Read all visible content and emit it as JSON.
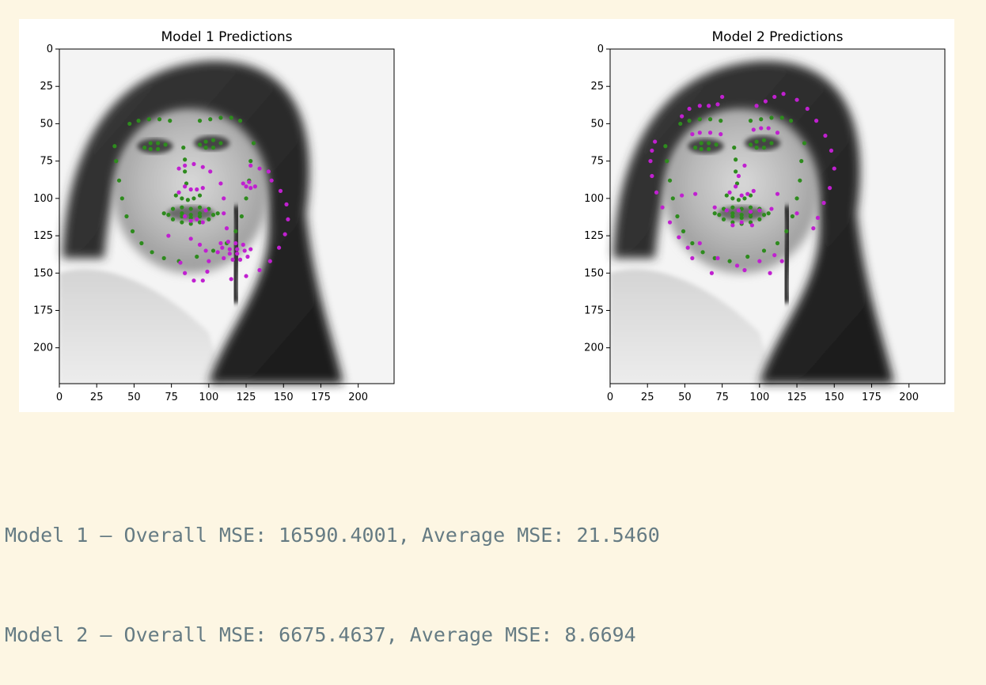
{
  "colors": {
    "page_background": "#fdf6e3",
    "output_text": "#657b83",
    "true_points": "#2e8b1e",
    "pred_points": "#c020d0"
  },
  "output_lines": [
    "Model 1 — Overall MSE: 16590.4001, Average MSE: 21.5460",
    "Model 2 — Overall MSE: 6675.4637, Average MSE: 8.6694"
  ],
  "chart_data": [
    {
      "type": "scatter",
      "title": "Model 1 Predictions",
      "background": "grayscale face image",
      "xlim": [
        0,
        224
      ],
      "ylim": [
        224,
        0
      ],
      "xticks": [
        0,
        25,
        50,
        75,
        100,
        125,
        150,
        175,
        200
      ],
      "yticks": [
        0,
        25,
        50,
        75,
        100,
        125,
        150,
        175,
        200
      ],
      "grid": false,
      "series": [
        {
          "color": "#2e8b1e",
          "points": [
            [
              37,
              65
            ],
            [
              38,
              75
            ],
            [
              40,
              88
            ],
            [
              42,
              100
            ],
            [
              45,
              112
            ],
            [
              49,
              122
            ],
            [
              55,
              130
            ],
            [
              62,
              136
            ],
            [
              70,
              140
            ],
            [
              80,
              142
            ],
            [
              92,
              139
            ],
            [
              103,
              135
            ],
            [
              112,
              130
            ],
            [
              118,
              122
            ],
            [
              122,
              112
            ],
            [
              125,
              100
            ],
            [
              127,
              88
            ],
            [
              128,
              75
            ],
            [
              130,
              63
            ],
            [
              47,
              50
            ],
            [
              53,
              48
            ],
            [
              60,
              47
            ],
            [
              67,
              47
            ],
            [
              74,
              48
            ],
            [
              94,
              48
            ],
            [
              101,
              47
            ],
            [
              108,
              46
            ],
            [
              115,
              46
            ],
            [
              121,
              48
            ],
            [
              83,
              66
            ],
            [
              84,
              74
            ],
            [
              84,
              82
            ],
            [
              85,
              90
            ],
            [
              78,
              98
            ],
            [
              82,
              100
            ],
            [
              86,
              101
            ],
            [
              90,
              100
            ],
            [
              94,
              98
            ],
            [
              57,
              66
            ],
            [
              61,
              63
            ],
            [
              66,
              63
            ],
            [
              71,
              64
            ],
            [
              66,
              67
            ],
            [
              61,
              67
            ],
            [
              94,
              64
            ],
            [
              98,
              62
            ],
            [
              103,
              61
            ],
            [
              108,
              63
            ],
            [
              103,
              66
            ],
            [
              98,
              66
            ],
            [
              70,
              110
            ],
            [
              76,
              107
            ],
            [
              82,
              106
            ],
            [
              88,
              107
            ],
            [
              94,
              106
            ],
            [
              100,
              107
            ],
            [
              106,
              110
            ],
            [
              100,
              114
            ],
            [
              94,
              116
            ],
            [
              88,
              117
            ],
            [
              82,
              116
            ],
            [
              76,
              114
            ],
            [
              73,
              111
            ],
            [
              82,
              110
            ],
            [
              88,
              111
            ],
            [
              94,
              110
            ],
            [
              103,
              111
            ],
            [
              94,
              112
            ],
            [
              88,
              113
            ],
            [
              82,
              112
            ]
          ]
        },
        {
          "color": "#c020d0",
          "points": [
            [
              80,
              80
            ],
            [
              84,
              78
            ],
            [
              90,
              77
            ],
            [
              96,
              79
            ],
            [
              101,
              82
            ],
            [
              128,
              78
            ],
            [
              134,
              80
            ],
            [
              140,
              82
            ],
            [
              125,
              92
            ],
            [
              128,
              93
            ],
            [
              131,
              92
            ],
            [
              127,
              89
            ],
            [
              123,
              90
            ],
            [
              84,
              92
            ],
            [
              88,
              94
            ],
            [
              92,
              94
            ],
            [
              96,
              93
            ],
            [
              80,
              96
            ],
            [
              84,
              112
            ],
            [
              88,
              115
            ],
            [
              92,
              114
            ],
            [
              96,
              116
            ],
            [
              108,
              90
            ],
            [
              110,
              100
            ],
            [
              110,
              110
            ],
            [
              112,
              120
            ],
            [
              142,
              88
            ],
            [
              148,
              95
            ],
            [
              152,
              104
            ],
            [
              153,
              114
            ],
            [
              151,
              124
            ],
            [
              147,
              133
            ],
            [
              141,
              142
            ],
            [
              134,
              148
            ],
            [
              125,
              152
            ],
            [
              115,
              154
            ],
            [
              108,
              130
            ],
            [
              113,
              129
            ],
            [
              118,
              130
            ],
            [
              123,
              131
            ],
            [
              128,
              134
            ],
            [
              126,
              139
            ],
            [
              121,
              141
            ],
            [
              116,
              141
            ],
            [
              110,
              140
            ],
            [
              106,
              136
            ],
            [
              109,
              133
            ],
            [
              114,
              134
            ],
            [
              119,
              134
            ],
            [
              124,
              135
            ],
            [
              119,
              137
            ],
            [
              114,
              137
            ],
            [
              88,
              127
            ],
            [
              94,
              131
            ],
            [
              98,
              135
            ],
            [
              100,
              142
            ],
            [
              99,
              149
            ],
            [
              96,
              155
            ],
            [
              90,
              155
            ],
            [
              84,
              150
            ],
            [
              81,
              143
            ],
            [
              73,
              125
            ],
            [
              98,
              108
            ]
          ]
        }
      ]
    },
    {
      "type": "scatter",
      "title": "Model 2 Predictions",
      "background": "grayscale face image",
      "xlim": [
        0,
        224
      ],
      "ylim": [
        224,
        0
      ],
      "xticks": [
        0,
        25,
        50,
        75,
        100,
        125,
        150,
        175,
        200
      ],
      "yticks": [
        0,
        25,
        50,
        75,
        100,
        125,
        150,
        175,
        200
      ],
      "grid": false,
      "series": [
        {
          "color": "#2e8b1e",
          "points": [
            [
              37,
              65
            ],
            [
              38,
              75
            ],
            [
              40,
              88
            ],
            [
              42,
              100
            ],
            [
              45,
              112
            ],
            [
              49,
              122
            ],
            [
              55,
              130
            ],
            [
              62,
              136
            ],
            [
              70,
              140
            ],
            [
              80,
              142
            ],
            [
              92,
              139
            ],
            [
              103,
              135
            ],
            [
              112,
              130
            ],
            [
              118,
              122
            ],
            [
              122,
              112
            ],
            [
              125,
              100
            ],
            [
              127,
              88
            ],
            [
              128,
              75
            ],
            [
              130,
              63
            ],
            [
              47,
              50
            ],
            [
              53,
              48
            ],
            [
              60,
              47
            ],
            [
              67,
              47
            ],
            [
              74,
              48
            ],
            [
              94,
              48
            ],
            [
              101,
              47
            ],
            [
              108,
              46
            ],
            [
              115,
              46
            ],
            [
              121,
              48
            ],
            [
              83,
              66
            ],
            [
              84,
              74
            ],
            [
              84,
              82
            ],
            [
              85,
              90
            ],
            [
              78,
              98
            ],
            [
              82,
              100
            ],
            [
              86,
              101
            ],
            [
              90,
              100
            ],
            [
              94,
              98
            ],
            [
              57,
              66
            ],
            [
              61,
              63
            ],
            [
              66,
              63
            ],
            [
              71,
              64
            ],
            [
              66,
              67
            ],
            [
              61,
              67
            ],
            [
              94,
              64
            ],
            [
              98,
              62
            ],
            [
              103,
              61
            ],
            [
              108,
              63
            ],
            [
              103,
              66
            ],
            [
              98,
              66
            ],
            [
              70,
              110
            ],
            [
              76,
              107
            ],
            [
              82,
              106
            ],
            [
              88,
              107
            ],
            [
              94,
              106
            ],
            [
              100,
              107
            ],
            [
              106,
              110
            ],
            [
              100,
              114
            ],
            [
              94,
              116
            ],
            [
              88,
              117
            ],
            [
              82,
              116
            ],
            [
              76,
              114
            ],
            [
              73,
              111
            ],
            [
              82,
              110
            ],
            [
              88,
              111
            ],
            [
              94,
              110
            ],
            [
              103,
              111
            ],
            [
              94,
              112
            ],
            [
              88,
              113
            ],
            [
              82,
              112
            ]
          ]
        },
        {
          "color": "#c020d0",
          "points": [
            [
              30,
              62
            ],
            [
              28,
              68
            ],
            [
              27,
              75
            ],
            [
              28,
              85
            ],
            [
              31,
              96
            ],
            [
              35,
              106
            ],
            [
              40,
              116
            ],
            [
              46,
              126
            ],
            [
              52,
              133
            ],
            [
              48,
              45
            ],
            [
              53,
              40
            ],
            [
              60,
              38
            ],
            [
              66,
              38
            ],
            [
              72,
              37
            ],
            [
              75,
              32
            ],
            [
              98,
              38
            ],
            [
              104,
              35
            ],
            [
              110,
              32
            ],
            [
              116,
              30
            ],
            [
              125,
              34
            ],
            [
              132,
              40
            ],
            [
              138,
              48
            ],
            [
              144,
              58
            ],
            [
              148,
              68
            ],
            [
              150,
              80
            ],
            [
              147,
              93
            ],
            [
              143,
              103
            ],
            [
              139,
              113
            ],
            [
              136,
              120
            ],
            [
              55,
              57
            ],
            [
              60,
              56
            ],
            [
              67,
              56
            ],
            [
              74,
              57
            ],
            [
              96,
              54
            ],
            [
              101,
              53
            ],
            [
              106,
              53
            ],
            [
              112,
              56
            ],
            [
              90,
              78
            ],
            [
              86,
              85
            ],
            [
              84,
              92
            ],
            [
              80,
              96
            ],
            [
              88,
              98
            ],
            [
              92,
              97
            ],
            [
              96,
              95
            ],
            [
              70,
              106
            ],
            [
              78,
              108
            ],
            [
              86,
              108
            ],
            [
              94,
              109
            ],
            [
              100,
              108
            ],
            [
              108,
              107
            ],
            [
              82,
              118
            ],
            [
              88,
              116
            ],
            [
              95,
              118
            ],
            [
              60,
              130
            ],
            [
              72,
              140
            ],
            [
              85,
              145
            ],
            [
              100,
              142
            ],
            [
              110,
              138
            ],
            [
              55,
              140
            ],
            [
              68,
              150
            ],
            [
              90,
              148
            ],
            [
              107,
              150
            ],
            [
              115,
              142
            ],
            [
              48,
              98
            ],
            [
              57,
              97
            ],
            [
              112,
              97
            ],
            [
              125,
              110
            ]
          ]
        }
      ]
    }
  ]
}
